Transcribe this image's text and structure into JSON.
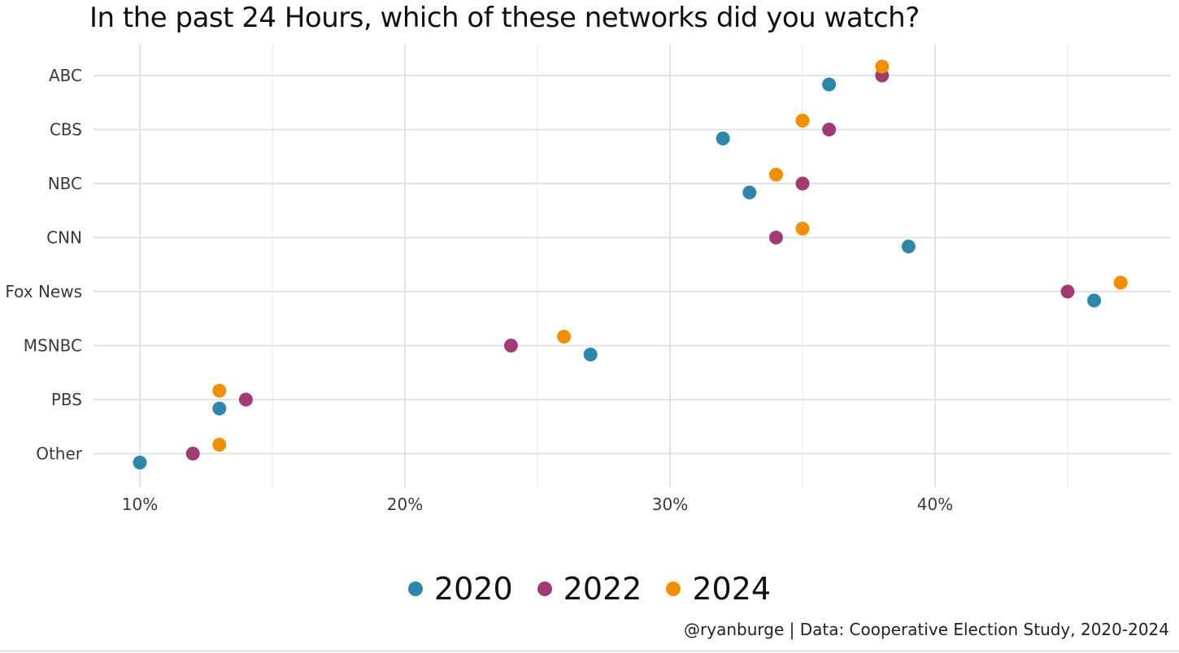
{
  "chart_data": {
    "type": "scatter",
    "title": "In the past 24 Hours, which of these networks did you watch?",
    "xlabel": "",
    "ylabel": "",
    "categories": [
      "ABC",
      "CBS",
      "NBC",
      "CNN",
      "Fox News",
      "MSNBC",
      "PBS",
      "Other"
    ],
    "x_ticks": [
      10,
      20,
      30,
      40
    ],
    "x_tick_labels": [
      "10%",
      "20%",
      "30%",
      "40%"
    ],
    "xlim": [
      8.2,
      48.3
    ],
    "grid": true,
    "legend_position": "bottom",
    "series": [
      {
        "name": "2020",
        "color": "#2e86ab",
        "values": [
          36,
          32,
          33,
          39,
          46,
          27,
          13,
          10
        ]
      },
      {
        "name": "2022",
        "color": "#a23b72",
        "values": [
          38,
          36,
          35,
          34,
          45,
          24,
          14,
          12
        ]
      },
      {
        "name": "2024",
        "color": "#f18f01",
        "values": [
          38,
          35,
          34,
          35,
          47,
          26,
          13,
          13
        ]
      }
    ],
    "caption": "@ryanburge | Data: Cooperative Election Study, 2020-2024"
  }
}
